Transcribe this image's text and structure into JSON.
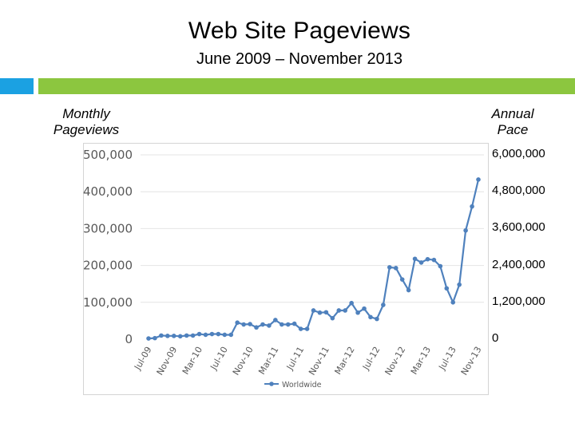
{
  "title": "Web Site Pageviews",
  "subtitle": "June 2009 – November 2013",
  "left_axis_title": [
    "Monthly",
    "Pageviews"
  ],
  "right_axis_title": [
    "Annual",
    "Pace"
  ],
  "colors": {
    "accent_blue": "#1ba1e2",
    "accent_green": "#8cc63f",
    "series_line": "#4f81bd",
    "grid": "#e4e4e4",
    "tick_text": "#595959"
  },
  "chart_data": {
    "type": "line",
    "title": "",
    "xlabel": "",
    "ylabel": "Monthly Pageviews",
    "y2label": "Annual Pace",
    "ylim": [
      0,
      500000
    ],
    "y_ticks": [
      0,
      100000,
      200000,
      300000,
      400000,
      500000
    ],
    "y_tick_labels": [
      "0",
      "100,000",
      "200,000",
      "300,000",
      "400,000",
      "500,000"
    ],
    "y2lim": [
      0,
      6000000
    ],
    "y2_tick_labels": [
      "0",
      "1,200,000",
      "2,400,000",
      "3,600,000",
      "4,800,000",
      "6,000,000"
    ],
    "x_tick_labels": [
      "Jul-09",
      "Nov-09",
      "Mar-10",
      "Jul-10",
      "Nov-10",
      "Mar-11",
      "Jul-11",
      "Nov-11",
      "Mar-12",
      "Jul-12",
      "Nov-12",
      "Mar-13",
      "Jul-13",
      "Nov-13"
    ],
    "x_tick_every": 4,
    "grid": true,
    "legend": "bottom",
    "series": [
      {
        "name": "Worldwide",
        "values": [
          2000,
          3000,
          10000,
          9000,
          9000,
          8000,
          10000,
          10000,
          14000,
          12000,
          14000,
          14000,
          12000,
          12000,
          45000,
          40000,
          41000,
          32000,
          40000,
          37000,
          52000,
          40000,
          40000,
          42000,
          28000,
          28000,
          78000,
          72000,
          73000,
          57000,
          78000,
          78000,
          98000,
          72000,
          83000,
          60000,
          55000,
          93000,
          195000,
          193000,
          162000,
          133000,
          218000,
          208000,
          217000,
          215000,
          198000,
          138000,
          100000,
          148000,
          295000,
          360000,
          433000
        ]
      }
    ]
  }
}
